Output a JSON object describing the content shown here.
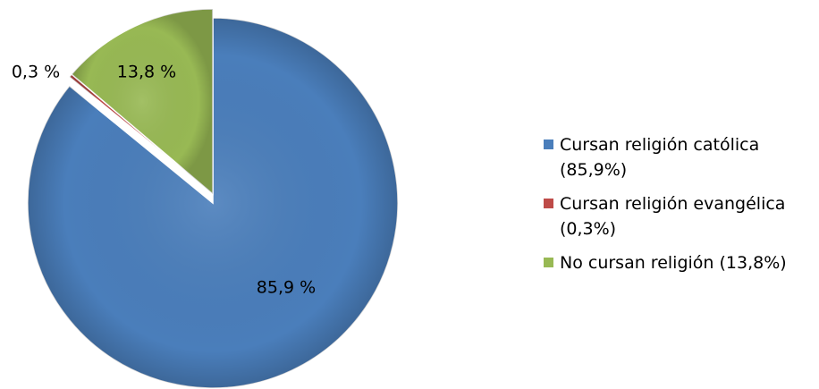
{
  "chart_data": {
    "type": "pie",
    "title": "",
    "start_angle_deg": 0,
    "direction": "clockwise",
    "slices": [
      {
        "legend": "Cursan religión católica (85,9%)",
        "label": "85,9 %",
        "value": 85.9,
        "color": "#4a7ebb",
        "explode": false
      },
      {
        "legend": "Cursan religión evangélica (0,3%)",
        "label": "0,3 %",
        "value": 0.3,
        "color": "#be4b48",
        "explode": true
      },
      {
        "legend": "No cursan religión (13,8%)",
        "label": "13,8 %",
        "value": 13.8,
        "color": "#98b954",
        "explode": true
      }
    ],
    "legend_position": "right"
  },
  "legend": {
    "items": [
      {
        "line1": "Cursan religión católica",
        "line2": "(85,9%)",
        "color": "#4a7ebb"
      },
      {
        "line1": "Cursan religión evangélica",
        "line2": "(0,3%)",
        "color": "#be4b48"
      },
      {
        "line1": "No cursan religión (13,8%)",
        "line2": "",
        "color": "#98b954"
      }
    ]
  }
}
